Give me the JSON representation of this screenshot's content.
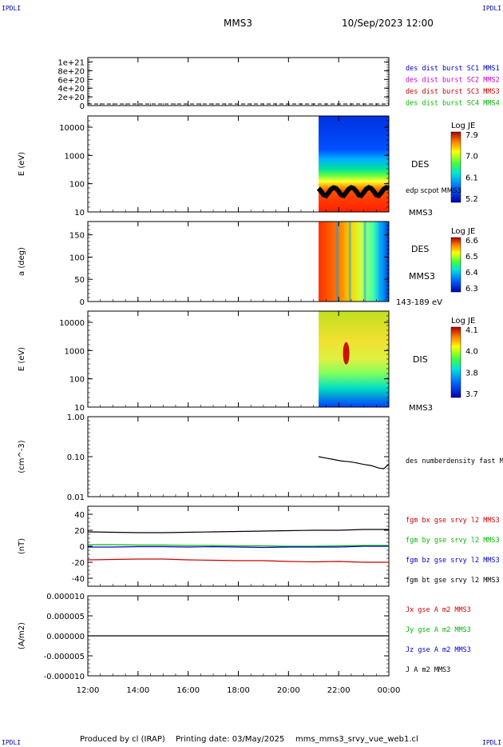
{
  "corners": {
    "tl": "IPDLI",
    "tr": "IPDLI",
    "bl": "IPDLI",
    "br": "IPDLI"
  },
  "header": {
    "spacecraft": "MMS3",
    "datetime": "10/Sep/2023 12:00"
  },
  "footer": {
    "produced": "Produced by cl (IRAP)",
    "printing": "Printing date: 03/May/2025",
    "file": "mms_mms3_srvy_vue_web1.cl"
  },
  "colors": {
    "blue": "#0000cc",
    "magenta": "#cc00cc",
    "red": "#cc0000",
    "green": "#00bb00",
    "black": "#000000"
  },
  "chart_data": [
    {
      "type": "line",
      "panel": "des-dist-burst",
      "ylabel": "",
      "yticks": [
        "1e+21",
        "8e+20",
        "6e+20",
        "4e+20",
        "2e+20",
        "0"
      ],
      "ylim": [
        0,
        1.1e+21
      ],
      "dashed_zero": true,
      "legend": [
        {
          "text": "des dist burst SC1 MMS1",
          "color": "#0000cc"
        },
        {
          "text": "des dist burst SC2 MMS2",
          "color": "#cc00cc"
        },
        {
          "text": "des dist burst SC3 MMS3",
          "color": "#cc0000"
        },
        {
          "text": "des dist burst SC4 MMS4",
          "color": "#00bb00"
        }
      ]
    },
    {
      "type": "heatmap",
      "panel": "des-energy",
      "ylabel": "E (eV)",
      "yscale": "log",
      "ylim": [
        10,
        25000
      ],
      "yticks": [
        "10000",
        "1000",
        "100",
        "10"
      ],
      "data_start_hour": 21.2,
      "labels": [
        "DES",
        "edp scpot MMS3",
        "MMS3"
      ],
      "colorbar": {
        "title": "Log JE",
        "ticks": [
          "7.9",
          "7.0",
          "6.1",
          "5.2"
        ]
      }
    },
    {
      "type": "heatmap",
      "panel": "des-pitch",
      "ylabel": "a (deg)",
      "ylim": [
        0,
        180
      ],
      "yticks": [
        "150",
        "100",
        "50",
        "0"
      ],
      "data_start_hour": 21.2,
      "labels": [
        "DES",
        "MMS3",
        "143-189 eV"
      ],
      "colorbar": {
        "title": "Log JE",
        "ticks": [
          "6.6",
          "6.5",
          "6.4",
          "6.3"
        ]
      }
    },
    {
      "type": "heatmap",
      "panel": "dis-energy",
      "ylabel": "E (eV)",
      "yscale": "log",
      "ylim": [
        10,
        25000
      ],
      "yticks": [
        "10000",
        "1000",
        "100",
        "10"
      ],
      "data_start_hour": 21.2,
      "labels": [
        "DIS",
        "MMS3"
      ],
      "colorbar": {
        "title": "Log JE",
        "ticks": [
          "4.1",
          "4.0",
          "3.8",
          "3.7"
        ]
      }
    },
    {
      "type": "line",
      "panel": "density",
      "ylabel": "(cm^-3)",
      "yscale": "log",
      "ylim": [
        0.01,
        1.0
      ],
      "yticks": [
        "1.00",
        "0.10",
        "0.01"
      ],
      "legend": [
        {
          "text": "des numberdensity fast M",
          "color": "#000000"
        }
      ],
      "series": [
        {
          "name": "des numberdensity fast M",
          "x": [
            21.2,
            21.5,
            21.8,
            22.1,
            22.4,
            22.7,
            23.0,
            23.3,
            23.6,
            23.8,
            24.0
          ],
          "y": [
            0.1,
            0.092,
            0.085,
            0.078,
            0.075,
            0.07,
            0.064,
            0.06,
            0.052,
            0.05,
            0.065
          ]
        }
      ]
    },
    {
      "type": "line",
      "panel": "fgm",
      "ylabel": "(nT)",
      "ylim": [
        -50,
        50
      ],
      "yticks": [
        "40",
        "20",
        "0",
        "-20",
        "-40"
      ],
      "legend": [
        {
          "text": "fgm bx gse srvy l2 MMS3",
          "color": "#cc0000"
        },
        {
          "text": "fgm by gse srvy l2 MMS3",
          "color": "#00bb00"
        },
        {
          "text": "fgm bz gse srvy l2 MMS3",
          "color": "#0000cc"
        },
        {
          "text": "fgm bt gse srvy l2 MMS3",
          "color": "#000000"
        }
      ],
      "series": [
        {
          "name": "fgm bx gse srvy l2 MMS3",
          "x": [
            12,
            13,
            14,
            15,
            16,
            17,
            18,
            19,
            20,
            21,
            22,
            23,
            24
          ],
          "y": [
            -17,
            -16.5,
            -16,
            -16,
            -17,
            -17.5,
            -18,
            -18,
            -19,
            -19.5,
            -19,
            -20,
            -20
          ]
        },
        {
          "name": "fgm by gse srvy l2 MMS3",
          "x": [
            12,
            13,
            14,
            15,
            16,
            17,
            18,
            19,
            20,
            21,
            22,
            23,
            24
          ],
          "y": [
            2,
            2,
            1.5,
            1.5,
            1,
            1,
            0.5,
            0.5,
            0,
            0,
            0.5,
            1,
            1
          ]
        },
        {
          "name": "fgm bz gse srvy l2 MMS3",
          "x": [
            12,
            13,
            14,
            15,
            16,
            17,
            18,
            19,
            20,
            21,
            22,
            23,
            24
          ],
          "y": [
            -1,
            -1,
            -0.5,
            -0.5,
            -1,
            -0.5,
            -1,
            -1.5,
            -1,
            -1,
            -1,
            0,
            0
          ]
        },
        {
          "name": "fgm bt gse srvy l2 MMS3",
          "x": [
            12,
            13,
            14,
            15,
            16,
            17,
            18,
            19,
            20,
            21,
            22,
            23,
            24
          ],
          "y": [
            18,
            17.5,
            17,
            17,
            17.5,
            18,
            18.5,
            19,
            19.5,
            20,
            20,
            21,
            21
          ]
        }
      ]
    },
    {
      "type": "line",
      "panel": "current",
      "ylabel": "(A/m2)",
      "ylim": [
        -1e-05,
        1e-05
      ],
      "yticks": [
        "0.000010",
        "0.000005",
        "0.000000",
        "-0.000005",
        "-0.000010"
      ],
      "legend": [
        {
          "text": "Jx gse A m2 MMS3",
          "color": "#cc0000"
        },
        {
          "text": "Jy gse A m2 MMS3",
          "color": "#00bb00"
        },
        {
          "text": "Jz gse A m2 MMS3",
          "color": "#0000cc"
        },
        {
          "text": "J A m2 MMS3",
          "color": "#000000"
        }
      ],
      "series": [
        {
          "name": "J A m2 MMS3",
          "x": [
            12,
            24
          ],
          "y": [
            0,
            0
          ]
        }
      ]
    }
  ],
  "xaxis": {
    "range": [
      12,
      24
    ],
    "ticks": [
      "12:00",
      "14:00",
      "16:00",
      "18:00",
      "20:00",
      "22:00",
      "00:00"
    ]
  }
}
